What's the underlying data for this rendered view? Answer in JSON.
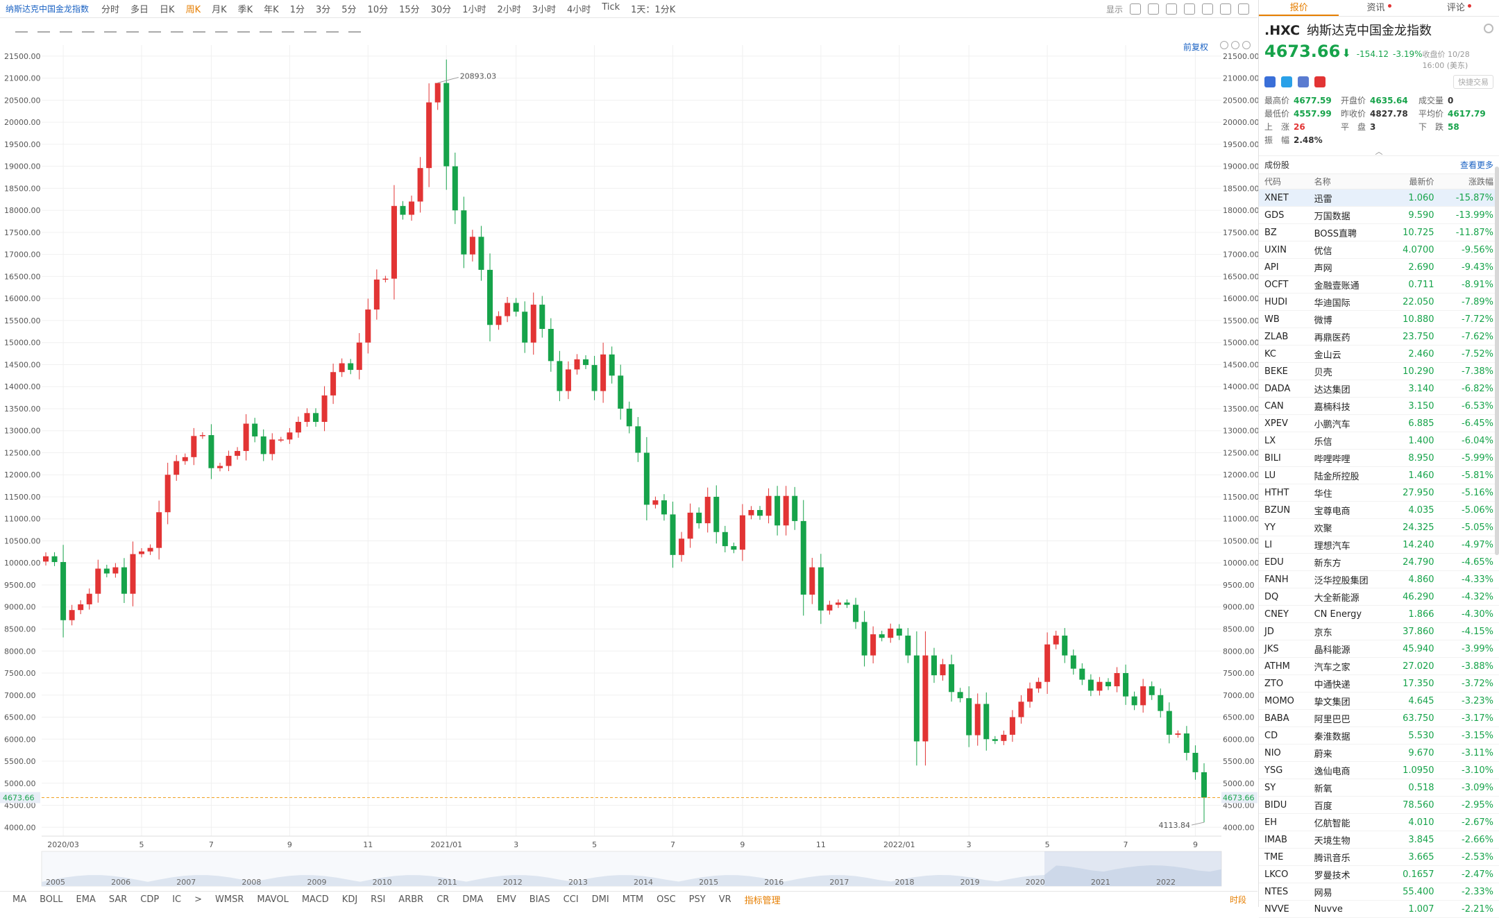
{
  "toolbar": {
    "symbol": "纳斯达克中国金龙指数",
    "periods": [
      "分时",
      "多日",
      "日K",
      "周K",
      "月K",
      "季K",
      "年K",
      "1分",
      "3分",
      "5分",
      "10分",
      "15分",
      "30分",
      "1小时",
      "2小时",
      "3小时",
      "4小时",
      "Tick",
      "1天：1分K"
    ],
    "active_period": "周K",
    "display_label": "显示"
  },
  "chart": {
    "restore_label": "前复权",
    "price_ticks": [
      "21500.00",
      "21000.00",
      "20500.00",
      "20000.00",
      "19500.00",
      "19000.00",
      "18500.00",
      "18000.00",
      "17500.00",
      "17000.00",
      "16500.00",
      "16000.00",
      "15500.00",
      "15000.00",
      "14500.00",
      "14000.00",
      "13500.00",
      "13000.00",
      "12500.00",
      "12000.00",
      "11500.00",
      "11000.00",
      "10500.00",
      "10000.00",
      "9500.00",
      "9000.00",
      "8500.00",
      "8000.00",
      "7500.00",
      "7000.00",
      "6500.00",
      "6000.00",
      "5500.00",
      "5000.00",
      "4500.00",
      "4000.00"
    ],
    "current_price_tag": "4673.66",
    "high_marker": "20893.03",
    "low_marker": "4113.84",
    "x_labels": [
      "2020/03",
      "5",
      "7",
      "9",
      "11",
      "2021/01",
      "3",
      "5",
      "7",
      "9",
      "11",
      "2022/01",
      "3",
      "5",
      "7",
      "9"
    ],
    "overview_years": [
      "2005",
      "2006",
      "2007",
      "2008",
      "2009",
      "2010",
      "2011",
      "2012",
      "2013",
      "2014",
      "2015",
      "2016",
      "2017",
      "2018",
      "2019",
      "2020",
      "2021",
      "2022"
    ],
    "colors": {
      "up": "#e23434",
      "down": "#16a34a",
      "grid": "#f0f0f0",
      "price_line": "#f0a020"
    }
  },
  "chart_data": {
    "type": "candlestick",
    "title": "",
    "xlabel": "",
    "ylabel": "",
    "ylim": [
      3800,
      21750
    ],
    "first_week": "2020/02/24",
    "last_week": "2022/10/24",
    "values": [
      10150,
      10020,
      8700,
      8930,
      9060,
      9300,
      9870,
      9760,
      9900,
      9300,
      10200,
      10260,
      10340,
      11150,
      12000,
      12310,
      12400,
      12880,
      12900,
      12150,
      12200,
      12430,
      12540,
      13160,
      12870,
      12470,
      12800,
      12800,
      12960,
      13200,
      13400,
      13200,
      13800,
      14330,
      14530,
      14380,
      15000,
      15750,
      16430,
      16450,
      18100,
      17900,
      18200,
      18960,
      20450,
      20890,
      19000,
      18000,
      17000,
      17400,
      16650,
      15400,
      15600,
      15900,
      15700,
      15000,
      15860,
      15310,
      14580,
      13900,
      14390,
      14620,
      14490,
      13900,
      14730,
      14250,
      13500,
      13100,
      12500,
      11320,
      11420,
      11100,
      10180,
      10550,
      11140,
      10900,
      11500,
      10700,
      10380,
      10300,
      11080,
      11200,
      11070,
      11520,
      10850,
      11520,
      10950,
      9280,
      9900,
      8920,
      9050,
      9100,
      9050,
      8660,
      7900,
      8380,
      8300,
      8510,
      8350,
      7900,
      5950,
      7900,
      7450,
      7700,
      7070,
      6930,
      6090,
      6800,
      6000,
      5960,
      6100,
      6500,
      6850,
      7150,
      7300,
      8150,
      8350,
      7900,
      7600,
      7350,
      7100,
      7300,
      7200,
      7500,
      6970,
      6770,
      7200,
      7000,
      6640,
      6100,
      6130,
      5690,
      5250,
      4673.66
    ],
    "high": 20893.03,
    "low": 4113.84,
    "last": 4673.66
  },
  "quote": {
    "tabs": [
      {
        "label": "报价"
      },
      {
        "label": "资讯"
      },
      {
        "label": "评论"
      }
    ],
    "code": ".HXC",
    "name": "纳斯达克中国金龙指数",
    "price": "4673.66",
    "arrow": "⬇",
    "change": "-154.12",
    "change_pct": "-3.19%",
    "time": "收盘价 10/28 16:00 (美东)",
    "quick_trade": "快捷交易",
    "stats": [
      {
        "k": "最高价",
        "v": "4677.59",
        "c": "green"
      },
      {
        "k": "开盘价",
        "v": "4635.64",
        "c": "green"
      },
      {
        "k": "成交量",
        "v": "0",
        "c": "black"
      },
      {
        "k": "最低价",
        "v": "4557.99",
        "c": "green"
      },
      {
        "k": "昨收价",
        "v": "4827.78",
        "c": "black"
      },
      {
        "k": "平均价",
        "v": "4617.79",
        "c": "green"
      },
      {
        "k": "上　涨",
        "v": "26",
        "c": "red"
      },
      {
        "k": "平　盘",
        "v": "3",
        "c": "black"
      },
      {
        "k": "下　跌",
        "v": "58",
        "c": "green"
      },
      {
        "k": "振　幅",
        "v": "2.48%",
        "c": "black"
      }
    ],
    "constituents_label": "成份股",
    "view_more": "查看更多",
    "columns": {
      "code": "代码",
      "name": "名称",
      "price": "最新价",
      "pct": "涨跌幅"
    },
    "rows": [
      {
        "code": "XNET",
        "name": "迅雷",
        "price": "1.060",
        "pct": "-15.87%"
      },
      {
        "code": "GDS",
        "name": "万国数据",
        "price": "9.590",
        "pct": "-13.99%"
      },
      {
        "code": "BZ",
        "name": "BOSS直聘",
        "price": "10.725",
        "pct": "-11.87%"
      },
      {
        "code": "UXIN",
        "name": "优信",
        "price": "4.0700",
        "pct": "-9.56%"
      },
      {
        "code": "API",
        "name": "声网",
        "price": "2.690",
        "pct": "-9.43%"
      },
      {
        "code": "OCFT",
        "name": "金融壹账通",
        "price": "0.711",
        "pct": "-8.91%"
      },
      {
        "code": "HUDI",
        "name": "华迪国际",
        "price": "22.050",
        "pct": "-7.89%"
      },
      {
        "code": "WB",
        "name": "微博",
        "price": "10.880",
        "pct": "-7.72%"
      },
      {
        "code": "ZLAB",
        "name": "再鼎医药",
        "price": "23.750",
        "pct": "-7.62%"
      },
      {
        "code": "KC",
        "name": "金山云",
        "price": "2.460",
        "pct": "-7.52%"
      },
      {
        "code": "BEKE",
        "name": "贝壳",
        "price": "10.290",
        "pct": "-7.38%"
      },
      {
        "code": "DADA",
        "name": "达达集团",
        "price": "3.140",
        "pct": "-6.82%"
      },
      {
        "code": "CAN",
        "name": "嘉楠科技",
        "price": "3.150",
        "pct": "-6.53%"
      },
      {
        "code": "XPEV",
        "name": "小鹏汽车",
        "price": "6.885",
        "pct": "-6.45%"
      },
      {
        "code": "LX",
        "name": "乐信",
        "price": "1.400",
        "pct": "-6.04%"
      },
      {
        "code": "BILI",
        "name": "哔哩哔哩",
        "price": "8.950",
        "pct": "-5.99%"
      },
      {
        "code": "LU",
        "name": "陆金所控股",
        "price": "1.460",
        "pct": "-5.81%"
      },
      {
        "code": "HTHT",
        "name": "华住",
        "price": "27.950",
        "pct": "-5.16%"
      },
      {
        "code": "BZUN",
        "name": "宝尊电商",
        "price": "4.035",
        "pct": "-5.06%"
      },
      {
        "code": "YY",
        "name": "欢聚",
        "price": "24.325",
        "pct": "-5.05%"
      },
      {
        "code": "LI",
        "name": "理想汽车",
        "price": "14.240",
        "pct": "-4.97%"
      },
      {
        "code": "EDU",
        "name": "新东方",
        "price": "24.790",
        "pct": "-4.65%"
      },
      {
        "code": "FANH",
        "name": "泛华控股集团",
        "price": "4.860",
        "pct": "-4.33%"
      },
      {
        "code": "DQ",
        "name": "大全新能源",
        "price": "46.290",
        "pct": "-4.32%"
      },
      {
        "code": "CNEY",
        "name": "CN Energy",
        "price": "1.866",
        "pct": "-4.30%"
      },
      {
        "code": "JD",
        "name": "京东",
        "price": "37.860",
        "pct": "-4.15%"
      },
      {
        "code": "JKS",
        "name": "晶科能源",
        "price": "45.940",
        "pct": "-3.99%"
      },
      {
        "code": "ATHM",
        "name": "汽车之家",
        "price": "27.020",
        "pct": "-3.88%"
      },
      {
        "code": "ZTO",
        "name": "中通快递",
        "price": "17.350",
        "pct": "-3.72%"
      },
      {
        "code": "MOMO",
        "name": "挚文集团",
        "price": "4.645",
        "pct": "-3.23%"
      },
      {
        "code": "BABA",
        "name": "阿里巴巴",
        "price": "63.750",
        "pct": "-3.17%"
      },
      {
        "code": "CD",
        "name": "秦淮数据",
        "price": "5.530",
        "pct": "-3.15%"
      },
      {
        "code": "NIO",
        "name": "蔚来",
        "price": "9.670",
        "pct": "-3.11%"
      },
      {
        "code": "YSG",
        "name": "逸仙电商",
        "price": "1.0950",
        "pct": "-3.10%"
      },
      {
        "code": "SY",
        "name": "新氧",
        "price": "0.518",
        "pct": "-3.09%"
      },
      {
        "code": "BIDU",
        "name": "百度",
        "price": "78.560",
        "pct": "-2.95%"
      },
      {
        "code": "EH",
        "name": "亿航智能",
        "price": "4.010",
        "pct": "-2.67%"
      },
      {
        "code": "IMAB",
        "name": "天境生物",
        "price": "3.845",
        "pct": "-2.66%"
      },
      {
        "code": "TME",
        "name": "腾讯音乐",
        "price": "3.665",
        "pct": "-2.53%"
      },
      {
        "code": "LKCO",
        "name": "罗曼技术",
        "price": "0.1657",
        "pct": "-2.47%"
      },
      {
        "code": "NTES",
        "name": "网易",
        "price": "55.400",
        "pct": "-2.33%"
      },
      {
        "code": "NVVE",
        "name": "Nuvve",
        "price": "1.007",
        "pct": "-2.21%"
      }
    ]
  },
  "indicators": {
    "items": [
      "MA",
      "BOLL",
      "EMA",
      "SAR",
      "CDP",
      "IC",
      ">",
      "WMSR",
      "MAVOL",
      "MACD",
      "KDJ",
      "RSI",
      "ARBR",
      "CR",
      "DMA",
      "EMV",
      "BIAS",
      "CCI",
      "DMI",
      "MTM",
      "OSC",
      "PSY",
      "VR"
    ],
    "manager": "指标管理",
    "time_label": "时段"
  }
}
